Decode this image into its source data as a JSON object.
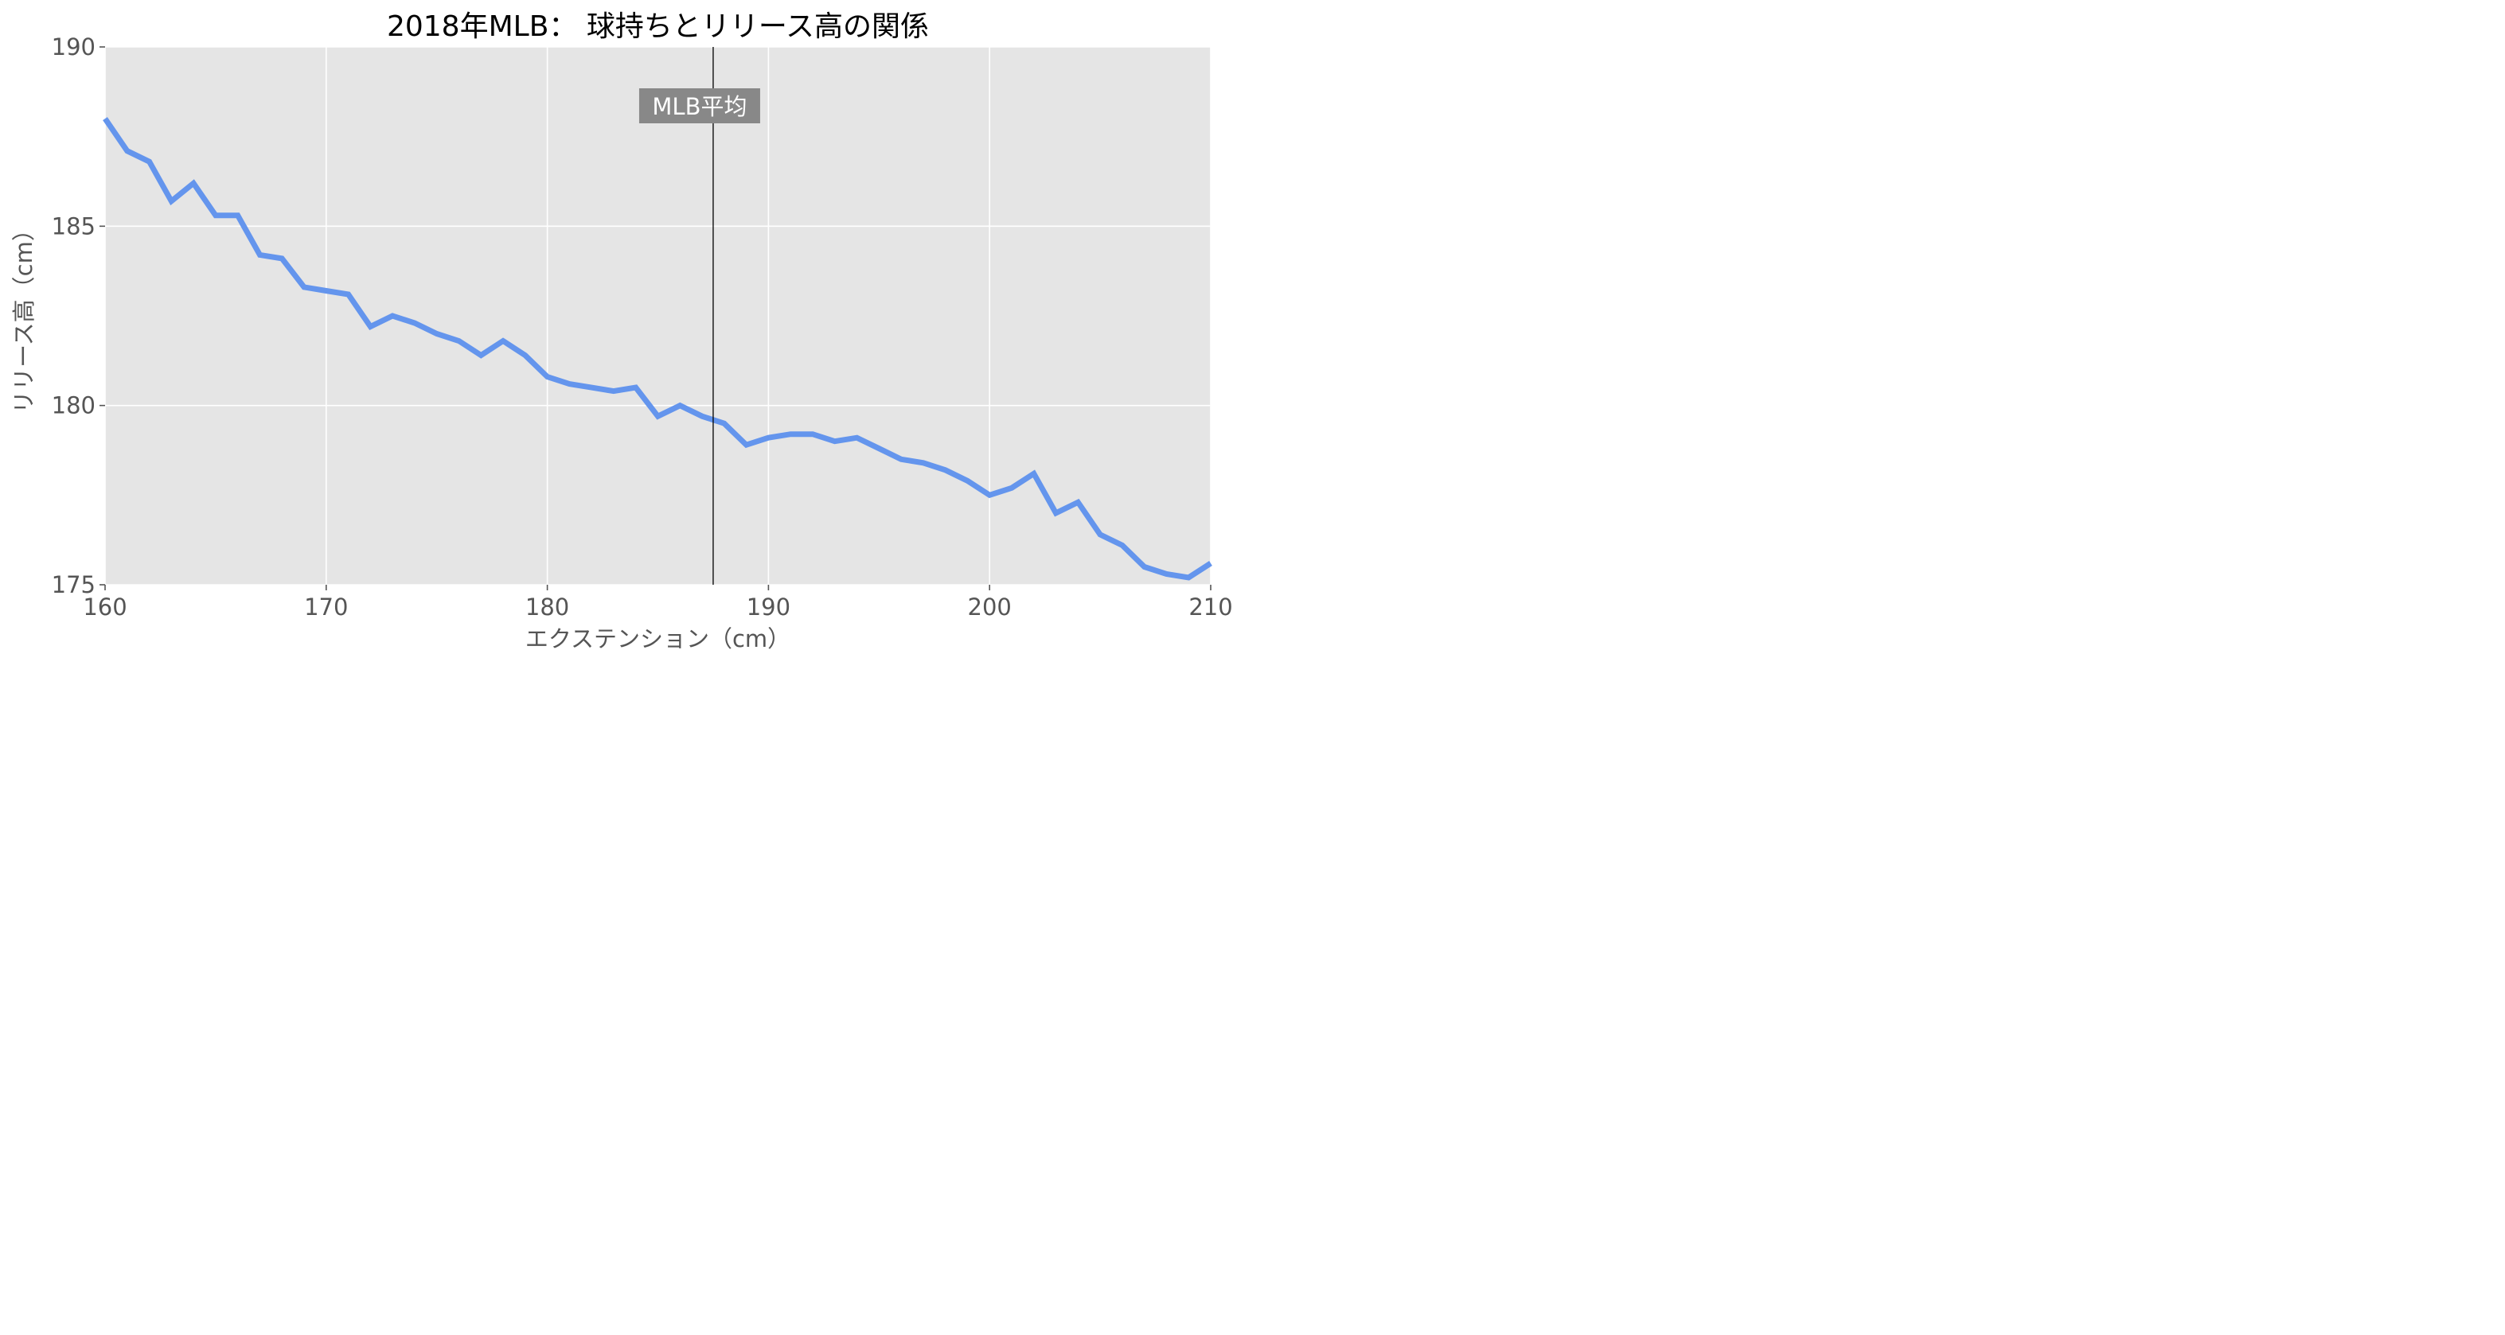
{
  "chart_data": {
    "type": "line",
    "title": "2018年MLB： 球持ちとリリース高の関係",
    "xlabel": "エクステンション（cm）",
    "ylabel": "リリース高（cm）",
    "xlim": [
      160,
      210
    ],
    "ylim": [
      175,
      190
    ],
    "xticks": [
      160,
      170,
      180,
      190,
      200,
      210
    ],
    "yticks": [
      175,
      180,
      185,
      190
    ],
    "grid": true,
    "series": [
      {
        "color": "#6495ED",
        "x": [
          160,
          161,
          162,
          163,
          164,
          165,
          166,
          167,
          168,
          169,
          170,
          171,
          172,
          173,
          174,
          175,
          176,
          177,
          178,
          179,
          180,
          181,
          182,
          183,
          184,
          185,
          186,
          187,
          188,
          189,
          190,
          191,
          192,
          193,
          194,
          195,
          196,
          197,
          198,
          199,
          200,
          201,
          202,
          203,
          204,
          205,
          206,
          207,
          208,
          209,
          210
        ],
        "y": [
          188.0,
          187.1,
          186.8,
          185.7,
          186.2,
          185.3,
          185.3,
          184.2,
          184.1,
          183.3,
          183.2,
          183.1,
          182.2,
          182.5,
          182.3,
          182.0,
          181.8,
          181.4,
          181.8,
          181.4,
          180.8,
          180.6,
          180.5,
          180.4,
          180.5,
          179.7,
          180.0,
          179.7,
          179.5,
          178.9,
          179.1,
          179.2,
          179.2,
          179.0,
          179.1,
          178.8,
          178.5,
          178.4,
          178.2,
          177.9,
          177.5,
          177.7,
          178.1,
          177.0,
          177.3,
          176.4,
          176.1,
          175.5,
          175.3,
          175.2,
          175.6
        ]
      }
    ],
    "annotations": [
      {
        "type": "vline",
        "x": 187.5,
        "color": "#000000",
        "label": "MLB平均",
        "label_bg": "#888888",
        "label_color": "#ffffff"
      }
    ],
    "colors": {
      "plot_background": "#E5E5E5",
      "grid": "#FFFFFF",
      "tick_label": "#555555"
    }
  }
}
